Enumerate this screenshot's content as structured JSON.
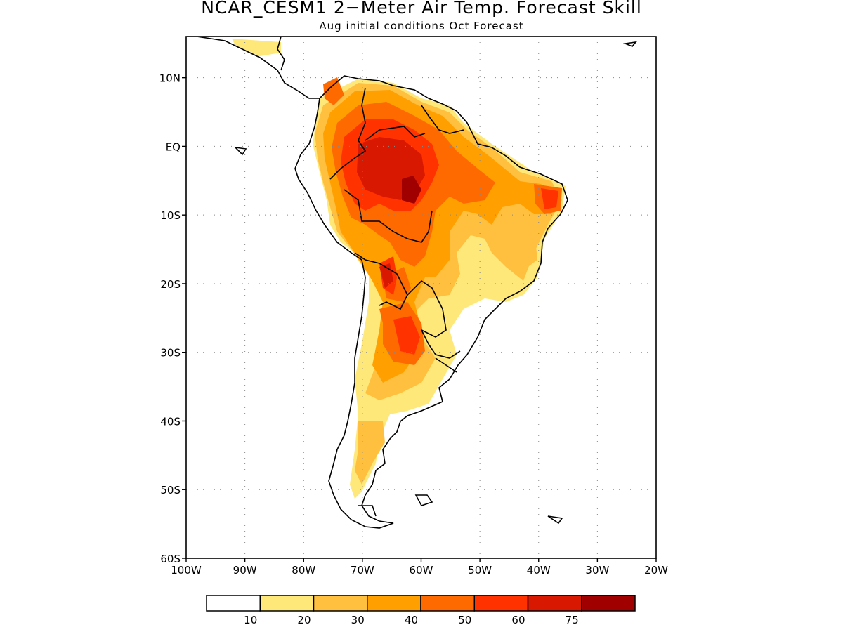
{
  "title": "NCAR_CESM1 2−Meter Air Temp. Forecast Skill",
  "subtitle": "Aug initial conditions  Oct Forecast",
  "map": {
    "lat_labels": [
      {
        "lat": 10,
        "label": "10N"
      },
      {
        "lat": 0,
        "label": "EQ"
      },
      {
        "lat": -10,
        "label": "10S"
      },
      {
        "lat": -20,
        "label": "20S"
      },
      {
        "lat": -30,
        "label": "30S"
      },
      {
        "lat": -40,
        "label": "40S"
      },
      {
        "lat": -50,
        "label": "50S"
      },
      {
        "lat": -60,
        "label": "60S"
      }
    ],
    "lon_labels": [
      {
        "lon": -100,
        "label": "100W"
      },
      {
        "lon": -90,
        "label": "90W"
      },
      {
        "lon": -80,
        "label": "80W"
      },
      {
        "lon": -70,
        "label": "70W"
      },
      {
        "lon": -60,
        "label": "60W"
      },
      {
        "lon": -50,
        "label": "50W"
      },
      {
        "lon": -40,
        "label": "40W"
      },
      {
        "lon": -30,
        "label": "30W"
      },
      {
        "lon": -20,
        "label": "20W"
      }
    ],
    "extent": {
      "lon": [
        -100,
        -20
      ],
      "lat": [
        -60,
        16
      ]
    },
    "gridlines": "dotted",
    "colors": {
      "land_outline": "#000000",
      "skill_bins": [
        "#ffffff",
        "#ffe87a",
        "#ffc040",
        "#ffa000",
        "#ff6a00",
        "#ff3200",
        "#d81800",
        "#a00000"
      ]
    }
  },
  "colorbar": {
    "labels": [
      "10",
      "20",
      "30",
      "40",
      "50",
      "60",
      "75"
    ],
    "colors": [
      "#ffffff",
      "#ffe87a",
      "#ffc040",
      "#ffa000",
      "#ff6a00",
      "#ff3200",
      "#d81800",
      "#a00000"
    ]
  }
}
